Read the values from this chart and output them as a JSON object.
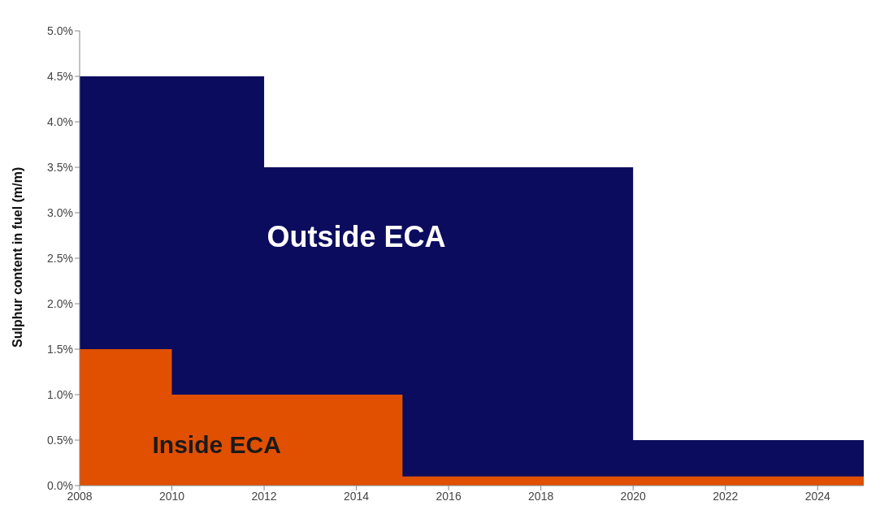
{
  "chart_data": {
    "type": "area",
    "ylabel": "Sulphur content in fuel (m/m)",
    "x": [
      2008,
      2010,
      2012,
      2015,
      2020,
      2025
    ],
    "series": [
      {
        "name": "Outside ECA",
        "color": "#0c0c5e",
        "values": [
          4.5,
          4.5,
          3.5,
          3.5,
          0.5,
          0.5
        ]
      },
      {
        "name": "Inside ECA",
        "color": "#e05000",
        "values": [
          1.5,
          1.0,
          1.0,
          0.1,
          0.1,
          0.1
        ]
      }
    ],
    "xlim": [
      2008,
      2025
    ],
    "xticks": [
      2008,
      2010,
      2012,
      2014,
      2016,
      2018,
      2020,
      2022,
      2024
    ],
    "ylim": [
      0,
      5
    ],
    "yticks": [
      {
        "value": 0,
        "label": "0.0%"
      },
      {
        "value": 0.5,
        "label": "0.5%"
      },
      {
        "value": 1,
        "label": "1.0%"
      },
      {
        "value": 1.5,
        "label": "1.5%"
      },
      {
        "value": 2,
        "label": "2.0%"
      },
      {
        "value": 2.5,
        "label": "2.5%"
      },
      {
        "value": 3,
        "label": "3.0%"
      },
      {
        "value": 3.5,
        "label": "3.5%"
      },
      {
        "value": 4,
        "label": "4.0%"
      },
      {
        "value": 4.5,
        "label": "4.5%"
      },
      {
        "value": 5,
        "label": "5.0%"
      }
    ],
    "grid": false
  }
}
